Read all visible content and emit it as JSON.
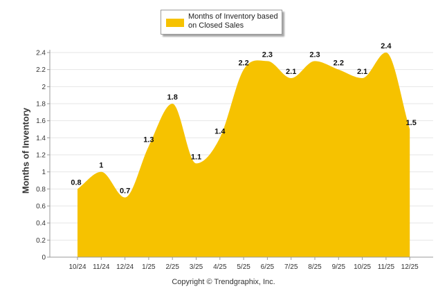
{
  "chart_data": {
    "type": "area",
    "title": "",
    "xlabel": "",
    "ylabel": "Months of Inventory",
    "categories": [
      "10/24",
      "11/24",
      "12/24",
      "1/25",
      "2/25",
      "3/25",
      "4/25",
      "5/25",
      "6/25",
      "7/25",
      "8/25",
      "9/25",
      "10/25",
      "11/25",
      "12/25"
    ],
    "series": [
      {
        "name": "Months of Inventory based on Closed Sales",
        "values": [
          0.8,
          1,
          0.7,
          1.3,
          1.8,
          1.1,
          1.4,
          2.2,
          2.3,
          2.1,
          2.3,
          2.2,
          2.1,
          2.4,
          1.5
        ],
        "labels": [
          "0.8",
          "1",
          "0.7",
          "1.3",
          "1.8",
          "1.1",
          "1.4",
          "2.2",
          "2.3",
          "2.1",
          "2.3",
          "2.2",
          "2.1",
          "2.4",
          "1.5"
        ]
      }
    ],
    "yticks": [
      "0",
      "0.2",
      "0.4",
      "0.6",
      "0.8",
      "1",
      "1.2",
      "1.4",
      "1.6",
      "1.8",
      "2",
      "2.2",
      "2.4"
    ],
    "ylim": [
      0,
      2.4
    ],
    "grid": true,
    "legend_position": "top-center",
    "color": "#F6C200"
  },
  "legend": {
    "label": "Months of Inventory based on Closed Sales"
  },
  "footer": {
    "copyright": "Copyright © Trendgraphix, Inc."
  }
}
